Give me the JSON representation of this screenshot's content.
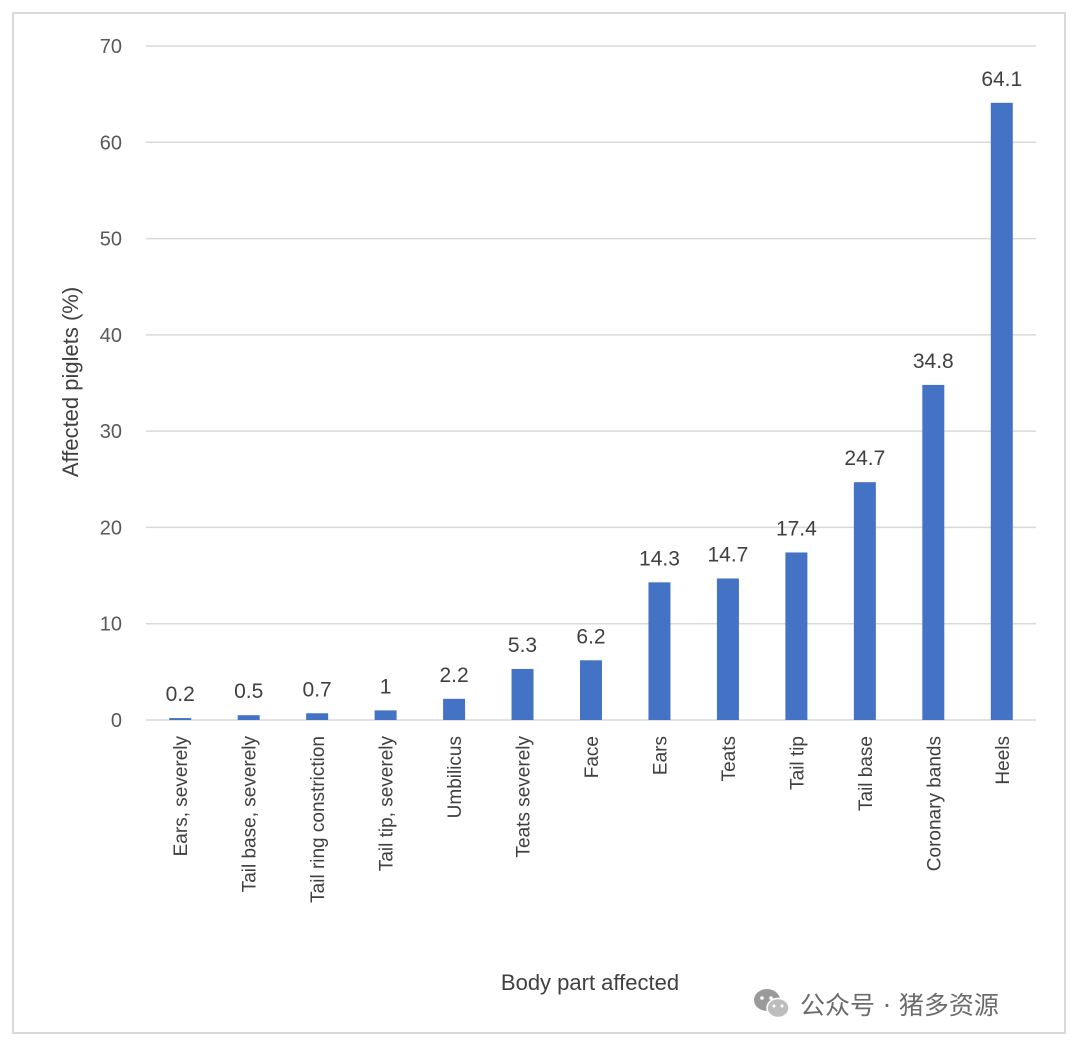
{
  "chart_data": {
    "type": "bar",
    "title": "",
    "xlabel": "Body part affected",
    "ylabel": "Affected piglets (%)",
    "ylim": [
      0,
      70
    ],
    "yticks": [
      "0",
      "10",
      "20",
      "30",
      "40",
      "50",
      "60",
      "70"
    ],
    "grid": true,
    "legend": "none",
    "bar_color": "#4472C4",
    "categories": [
      "Ears, severely",
      "Tail base, severely",
      "Tail ring constriction",
      "Tail tip, severely",
      "Umbilicus",
      "Teats severely",
      "Face",
      "Ears",
      "Teats",
      "Tail tip",
      "Tail base",
      "Coronary bands",
      "Heels"
    ],
    "values": [
      0.2,
      0.5,
      0.7,
      1,
      2.2,
      5.3,
      6.2,
      14.3,
      14.7,
      17.4,
      24.7,
      34.8,
      64.1
    ],
    "data_labels": [
      "0.2",
      "0.5",
      "0.7",
      "1",
      "2.2",
      "5.3",
      "6.2",
      "14.3",
      "14.7",
      "17.4",
      "24.7",
      "34.8",
      "64.1"
    ]
  },
  "watermark": {
    "text": "公众号 · 猪多资源",
    "icon": "wechat-icon"
  }
}
